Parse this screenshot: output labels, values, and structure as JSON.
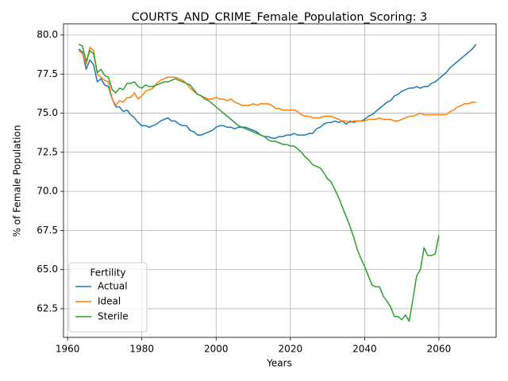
{
  "chart_data": {
    "type": "line",
    "title": "COURTS_AND_CRIME_Female_Population_Scoring: 3",
    "x_label": "Years",
    "y_label": "% of Female Population",
    "legend_title": "Fertility",
    "legend_position": "lower left",
    "grid": true,
    "xlim": [
      1958.9,
      2075.4
    ],
    "ylim": [
      60.67,
      80.71
    ],
    "xticks": [
      1960,
      1980,
      2000,
      2020,
      2040,
      2060
    ],
    "yticks": [
      62.5,
      {
        "value": 65,
        "label": "65.0"
      },
      67.5,
      {
        "value": 70,
        "label": "70.0"
      },
      72.5,
      {
        "value": 75,
        "label": "75.0"
      },
      77.5,
      {
        "value": 80,
        "label": "80.0"
      }
    ],
    "x": [
      1963,
      1964,
      1965,
      1966,
      1967,
      1968,
      1969,
      1970,
      1971,
      1972,
      1973,
      1974,
      1975,
      1976,
      1977,
      1978,
      1979,
      1980,
      1981,
      1982,
      1983,
      1984,
      1985,
      1986,
      1987,
      1988,
      1989,
      1990,
      1991,
      1992,
      1993,
      1994,
      1995,
      1996,
      1997,
      1998,
      1999,
      2000,
      2001,
      2002,
      2003,
      2004,
      2005,
      2006,
      2007,
      2008,
      2009,
      2010,
      2011,
      2012,
      2013,
      2014,
      2015,
      2016,
      2017,
      2018,
      2019,
      2020,
      2021,
      2022,
      2023,
      2024,
      2025,
      2026,
      2027,
      2028,
      2029,
      2030,
      2031,
      2032,
      2033,
      2034,
      2035,
      2036,
      2037,
      2038,
      2039,
      2040,
      2041,
      2042,
      2043,
      2044,
      2045,
      2046,
      2047,
      2048,
      2049,
      2050,
      2051,
      2052,
      2053,
      2054,
      2055,
      2056,
      2057,
      2058,
      2059,
      2060,
      2061,
      2062,
      2063,
      2064,
      2065,
      2066,
      2067,
      2068,
      2069,
      2070
    ],
    "series": [
      {
        "name": "Actual",
        "color": "#1f77b4",
        "values": [
          79.1,
          78.9,
          77.8,
          78.4,
          78.1,
          77.0,
          77.2,
          76.8,
          76.7,
          75.9,
          75.4,
          75.4,
          75.1,
          75.2,
          74.9,
          74.7,
          74.4,
          74.2,
          74.2,
          74.1,
          74.2,
          74.3,
          74.5,
          74.6,
          74.7,
          74.5,
          74.5,
          74.3,
          74.2,
          74.2,
          73.9,
          73.8,
          73.6,
          73.6,
          73.7,
          73.8,
          73.9,
          74.1,
          74.2,
          74.2,
          74.1,
          74.1,
          74.0,
          74.1,
          74.1,
          74.1,
          74.0,
          73.9,
          73.8,
          73.6,
          73.5,
          73.5,
          73.4,
          73.4,
          73.5,
          73.5,
          73.6,
          73.6,
          73.7,
          73.6,
          73.6,
          73.6,
          73.7,
          73.7,
          74.0,
          74.1,
          74.3,
          74.4,
          74.4,
          74.5,
          74.4,
          74.5,
          74.3,
          74.5,
          74.4,
          74.5,
          74.5,
          74.6,
          74.8,
          74.9,
          75.1,
          75.3,
          75.5,
          75.7,
          75.8,
          76.1,
          76.2,
          76.4,
          76.5,
          76.6,
          76.6,
          76.7,
          76.6,
          76.7,
          76.7,
          76.9,
          77.0,
          77.2,
          77.4,
          77.6,
          77.9,
          78.1,
          78.3,
          78.5,
          78.7,
          78.9,
          79.1,
          79.4
        ]
      },
      {
        "name": "Ideal",
        "color": "#ff7f0e",
        "values": [
          79.0,
          78.8,
          78.1,
          79.2,
          79.0,
          77.5,
          77.3,
          77.1,
          77.0,
          75.9,
          75.5,
          75.8,
          75.7,
          76.0,
          76.0,
          76.3,
          75.9,
          76.1,
          76.4,
          76.5,
          76.6,
          76.9,
          77.1,
          77.2,
          77.3,
          77.3,
          77.3,
          77.2,
          77.1,
          76.9,
          76.6,
          76.4,
          76.2,
          76.1,
          76.0,
          75.9,
          75.9,
          76.0,
          75.9,
          75.9,
          75.8,
          75.9,
          75.7,
          75.6,
          75.5,
          75.5,
          75.5,
          75.6,
          75.5,
          75.6,
          75.6,
          75.6,
          75.5,
          75.3,
          75.3,
          75.2,
          75.2,
          75.2,
          75.2,
          75.1,
          74.9,
          74.8,
          74.8,
          74.7,
          74.7,
          74.7,
          74.8,
          74.8,
          74.8,
          74.7,
          74.6,
          74.5,
          74.5,
          74.4,
          74.5,
          74.5,
          74.5,
          74.5,
          74.6,
          74.6,
          74.6,
          74.7,
          74.6,
          74.6,
          74.6,
          74.5,
          74.5,
          74.6,
          74.7,
          74.8,
          74.8,
          74.9,
          75.0,
          74.9,
          74.9,
          74.9,
          74.9,
          74.9,
          74.9,
          74.9,
          75.1,
          75.2,
          75.4,
          75.5,
          75.6,
          75.6,
          75.7,
          75.7
        ]
      },
      {
        "name": "Sterile",
        "color": "#2ca02c",
        "values": [
          79.4,
          79.3,
          78.3,
          79.0,
          78.8,
          77.6,
          77.8,
          77.4,
          77.3,
          76.5,
          76.3,
          76.6,
          76.5,
          76.9,
          76.9,
          77.0,
          76.7,
          76.6,
          76.8,
          76.7,
          76.7,
          76.8,
          76.9,
          77.0,
          77.0,
          77.1,
          77.2,
          77.1,
          77.0,
          76.9,
          76.8,
          76.5,
          76.2,
          76.1,
          75.9,
          75.8,
          75.6,
          75.4,
          75.2,
          75.0,
          74.8,
          74.6,
          74.4,
          74.2,
          74.1,
          74.0,
          73.9,
          73.8,
          73.7,
          73.6,
          73.5,
          73.3,
          73.2,
          73.2,
          73.1,
          73.0,
          73.0,
          72.9,
          72.9,
          72.7,
          72.5,
          72.2,
          72.0,
          71.7,
          71.6,
          71.5,
          71.2,
          70.8,
          70.6,
          70.1,
          69.6,
          69.0,
          68.4,
          67.8,
          67.1,
          66.3,
          65.7,
          65.2,
          64.6,
          64.0,
          63.9,
          63.9,
          63.3,
          63.0,
          62.6,
          62.0,
          62.0,
          61.8,
          62.1,
          61.7,
          63.1,
          64.6,
          65.0,
          66.4,
          65.9,
          65.9,
          66.0,
          67.2,
          null,
          null,
          null,
          null,
          null,
          null,
          null,
          null,
          null,
          null
        ]
      }
    ]
  }
}
